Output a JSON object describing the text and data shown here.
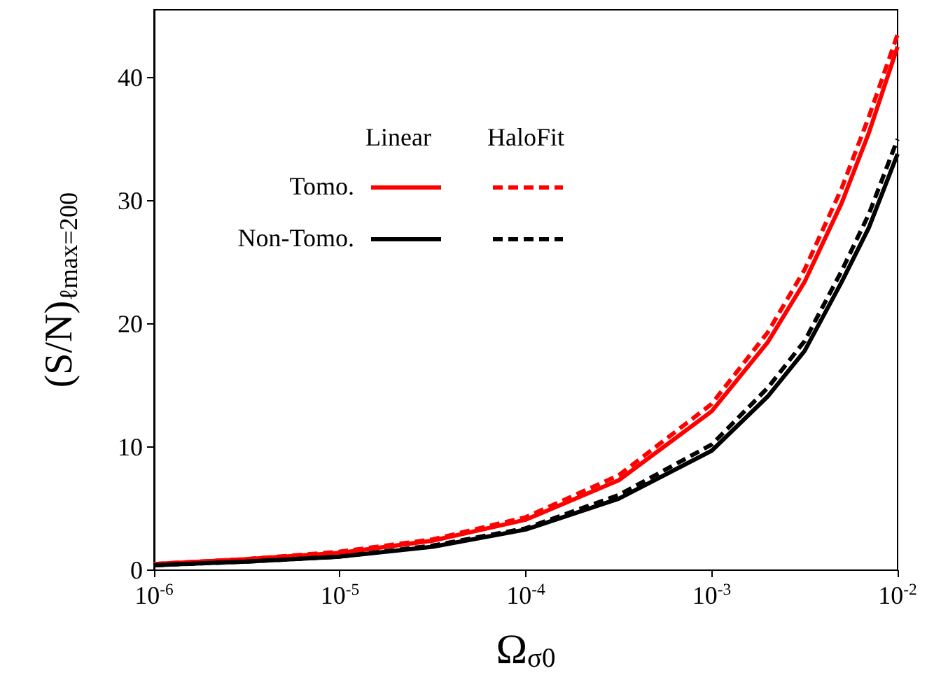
{
  "chart_data": {
    "type": "line",
    "xlabel": "Ω$_{σ0}$",
    "ylabel": "(S/N)$_{ℓmax=200}$",
    "x": [
      1e-06,
      3.16e-06,
      1e-05,
      3.16e-05,
      0.0001,
      0.000316,
      0.001,
      0.002,
      0.00316,
      0.005,
      0.007,
      0.01
    ],
    "series": [
      {
        "color": "#ff0000",
        "line_style": "solid",
        "values": [
          0.5,
          0.9,
          1.4,
          2.4,
          4.1,
          7.3,
          12.9,
          18.5,
          23.4,
          29.8,
          35.5,
          42.5
        ]
      },
      {
        "color": "#ff0000",
        "line_style": "dashed",
        "values": [
          0.5,
          0.9,
          1.5,
          2.5,
          4.3,
          7.7,
          13.5,
          19.3,
          24.4,
          31.0,
          36.8,
          43.5
        ]
      },
      {
        "color": "#000000",
        "line_style": "solid",
        "values": [
          0.4,
          0.7,
          1.1,
          1.9,
          3.3,
          5.8,
          9.7,
          14.1,
          17.8,
          23.4,
          27.8,
          33.8
        ]
      },
      {
        "color": "#000000",
        "line_style": "dashed",
        "values": [
          0.4,
          0.7,
          1.1,
          2.0,
          3.4,
          6.1,
          10.2,
          14.8,
          18.6,
          24.3,
          28.9,
          35.0
        ]
      }
    ],
    "annotations": [
      "Linear",
      "HaloFit",
      "Tomo.",
      "Non-Tomo."
    ],
    "log": "x",
    "grid": false,
    "marker": "none",
    "xlim": [
      1e-06,
      0.01
    ],
    "xticks": [
      {
        "value": 1e-06,
        "label": "10$^{-6}$"
      },
      {
        "value": 1e-05,
        "label": "10$^{-5}$"
      },
      {
        "value": 0.0001,
        "label": "10$^{-4}$"
      },
      {
        "value": 0.001,
        "label": "10$^{-3}$"
      },
      {
        "value": 0.01,
        "label": "10$^{-2}$"
      }
    ],
    "ylim": [
      0,
      45.5
    ],
    "yticks": [
      0,
      10,
      20,
      30,
      40
    ]
  }
}
